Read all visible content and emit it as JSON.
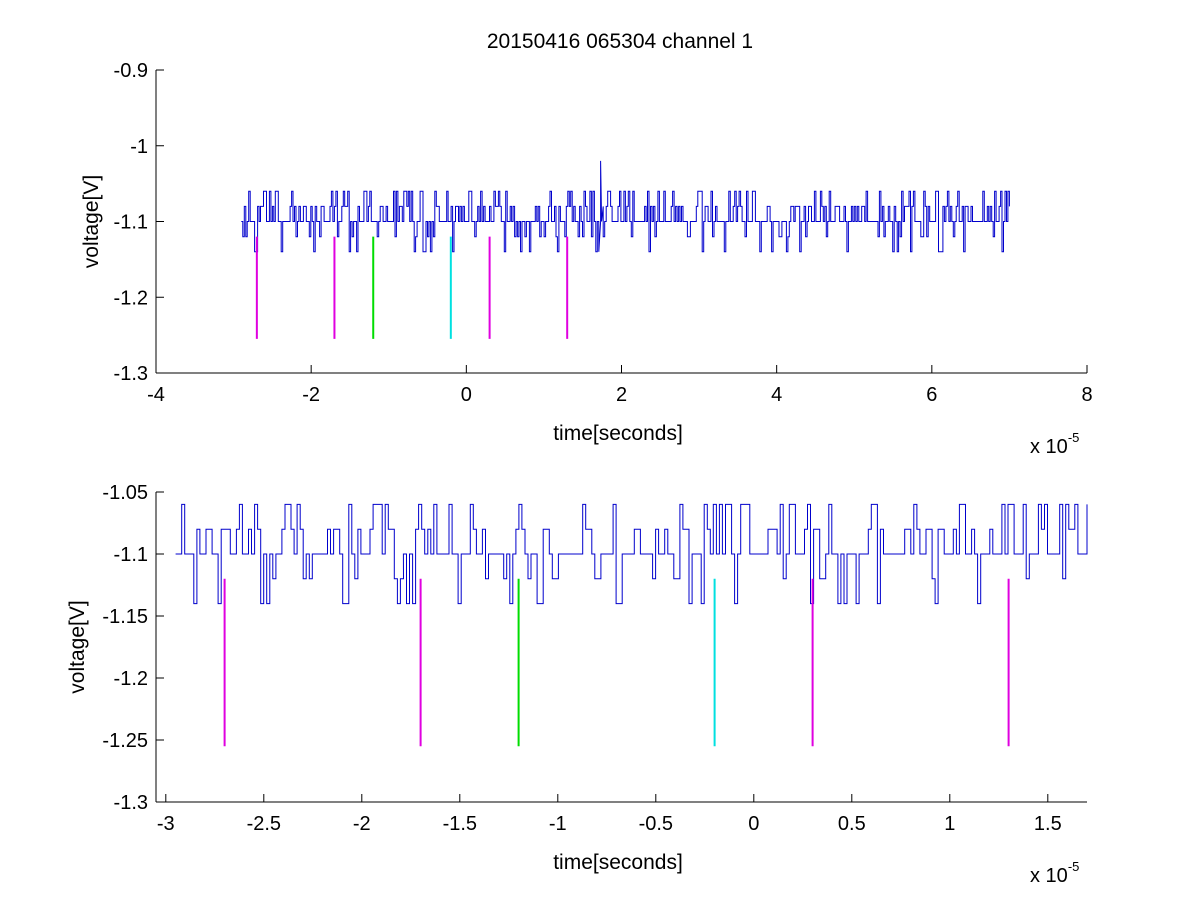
{
  "chart_data": [
    {
      "type": "line",
      "title": "20150416 065304 channel 1",
      "xlabel": "time[seconds]",
      "ylabel": "voltage[V]",
      "x_multiplier": "x 10",
      "x_multiplier_exp": "-5",
      "xlim": [
        -4e-05,
        8e-05
      ],
      "ylim": [
        -1.3,
        -0.9
      ],
      "xticks": [
        -4e-05,
        -2e-05,
        0,
        2e-05,
        4e-05,
        6e-05,
        8e-05
      ],
      "xtick_labels": [
        "-4",
        "-2",
        "0",
        "2",
        "4",
        "6",
        "8"
      ],
      "yticks": [
        -1.3,
        -1.2,
        -1.1,
        -1.0,
        -0.9
      ],
      "ytick_labels": [
        "-1.3",
        "-1.2",
        "-1.1",
        "-1",
        "-0.9"
      ],
      "grid": false,
      "series": [
        {
          "color": "#0000cc",
          "x_start": -2.9e-05,
          "x_end": 7e-05,
          "baseline": -1.1,
          "levels": [
            -1.14,
            -1.12,
            -1.1,
            -1.08,
            -1.06
          ],
          "spike": {
            "x": 1.73e-05,
            "y": -1.02
          }
        }
      ],
      "markers": [
        {
          "x": -2.7e-05,
          "y_top": -1.12,
          "y_bottom": -1.255,
          "color": "#e000e0"
        },
        {
          "x": -1.7e-05,
          "y_top": -1.12,
          "y_bottom": -1.255,
          "color": "#e000e0"
        },
        {
          "x": -1.2e-05,
          "y_top": -1.12,
          "y_bottom": -1.255,
          "color": "#00dd00"
        },
        {
          "x": -2e-06,
          "y_top": -1.12,
          "y_bottom": -1.255,
          "color": "#00e0e0"
        },
        {
          "x": 3e-06,
          "y_top": -1.12,
          "y_bottom": -1.255,
          "color": "#e000e0"
        },
        {
          "x": 1.3e-05,
          "y_top": -1.12,
          "y_bottom": -1.255,
          "color": "#e000e0"
        }
      ]
    },
    {
      "type": "line",
      "xlabel": "time[seconds]",
      "ylabel": "voltage[V]",
      "x_multiplier": "x 10",
      "x_multiplier_exp": "-5",
      "xlim": [
        -3.05e-05,
        1.7e-05
      ],
      "ylim": [
        -1.3,
        -1.05
      ],
      "xticks": [
        -3e-05,
        -2.5e-05,
        -2e-05,
        -1.5e-05,
        -1e-05,
        -5e-06,
        0,
        5e-06,
        1e-05,
        1.5e-05
      ],
      "xtick_labels": [
        "-3",
        "-2.5",
        "-2",
        "-1.5",
        "-1",
        "-0.5",
        "0",
        "0.5",
        "1",
        "1.5"
      ],
      "yticks": [
        -1.3,
        -1.25,
        -1.2,
        -1.15,
        -1.1,
        -1.05
      ],
      "ytick_labels": [
        "-1.3",
        "-1.25",
        "-1.2",
        "-1.15",
        "-1.1",
        "-1.05"
      ],
      "grid": false,
      "series": [
        {
          "color": "#0000cc",
          "x_start": -2.95e-05,
          "x_end": 1.7e-05,
          "baseline": -1.1,
          "levels": [
            -1.14,
            -1.12,
            -1.1,
            -1.08,
            -1.06
          ]
        }
      ],
      "markers": [
        {
          "x": -2.7e-05,
          "y_top": -1.12,
          "y_bottom": -1.255,
          "color": "#e000e0"
        },
        {
          "x": -1.7e-05,
          "y_top": -1.12,
          "y_bottom": -1.255,
          "color": "#e000e0"
        },
        {
          "x": -1.2e-05,
          "y_top": -1.12,
          "y_bottom": -1.255,
          "color": "#00dd00"
        },
        {
          "x": -2e-06,
          "y_top": -1.12,
          "y_bottom": -1.255,
          "color": "#00e0e0"
        },
        {
          "x": 3e-06,
          "y_top": -1.12,
          "y_bottom": -1.255,
          "color": "#e000e0"
        },
        {
          "x": 1.3e-05,
          "y_top": -1.12,
          "y_bottom": -1.255,
          "color": "#e000e0"
        }
      ]
    }
  ]
}
